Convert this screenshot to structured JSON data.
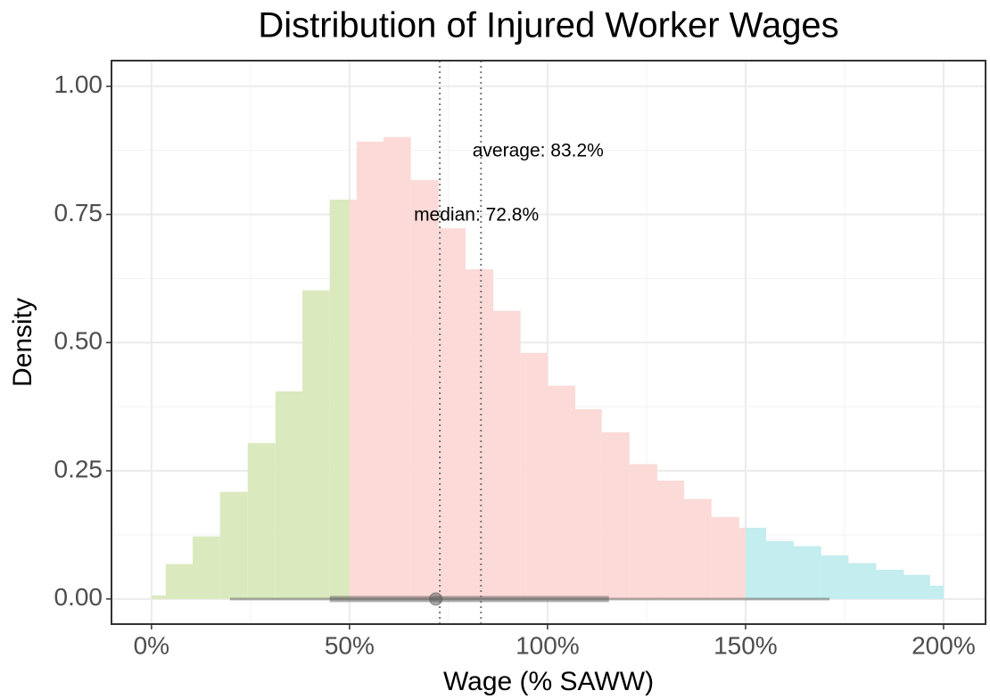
{
  "chart_data": {
    "type": "histogram",
    "title": "Distribution of Injured Worker Wages",
    "x_label": "Wage (% SAWW)",
    "y_label": "Density",
    "groups": [
      {
        "color": "#dbe9bf",
        "bins": [
          0,
          3.6,
          10.4,
          17.3,
          24.3,
          31.3,
          38.1,
          45,
          50
        ],
        "values": [
          0.007,
          0.068,
          0.122,
          0.209,
          0.304,
          0.405,
          0.602,
          0.779
        ]
      },
      {
        "color": "#fbdad8",
        "bins": [
          50,
          51.8,
          58.6,
          65.5,
          72.5,
          79.3,
          86.3,
          93.2,
          100,
          107,
          113.7,
          120.7,
          127.7,
          134.5,
          141.4,
          148.4,
          150
        ],
        "values": [
          0.779,
          0.892,
          0.901,
          0.817,
          0.723,
          0.643,
          0.562,
          0.48,
          0.416,
          0.37,
          0.325,
          0.263,
          0.231,
          0.195,
          0.16,
          0.139
        ]
      },
      {
        "color": "#c3edee",
        "bins": [
          150,
          155.2,
          162.2,
          169.1,
          176,
          183,
          190,
          196.6,
          200
        ],
        "values": [
          0.139,
          0.113,
          0.103,
          0.085,
          0.07,
          0.057,
          0.047,
          0.026
        ]
      }
    ],
    "median": 72.8,
    "average": 83.2,
    "median_label": "median: 72.8%",
    "average_label": "average: 83.2%",
    "interval": {
      "outer": [
        19.8,
        171.2
      ],
      "inner": [
        45,
        115.5
      ],
      "point": 71.8
    },
    "xlim": [
      -10.1,
      210.6
    ],
    "ylim": [
      -0.049,
      1.05
    ],
    "xticks": [
      {
        "value": 0,
        "label": "0%"
      },
      {
        "value": 50,
        "label": "50%"
      },
      {
        "value": 100,
        "label": "100%"
      },
      {
        "value": 150,
        "label": "150%"
      },
      {
        "value": 200,
        "label": "200%"
      }
    ],
    "yticks": [
      {
        "value": 0,
        "label": "0.00"
      },
      {
        "value": 0.25,
        "label": "0.25"
      },
      {
        "value": 0.5,
        "label": "0.50"
      },
      {
        "value": 0.75,
        "label": "0.75"
      },
      {
        "value": 1,
        "label": "1.00"
      }
    ],
    "grid": true
  }
}
